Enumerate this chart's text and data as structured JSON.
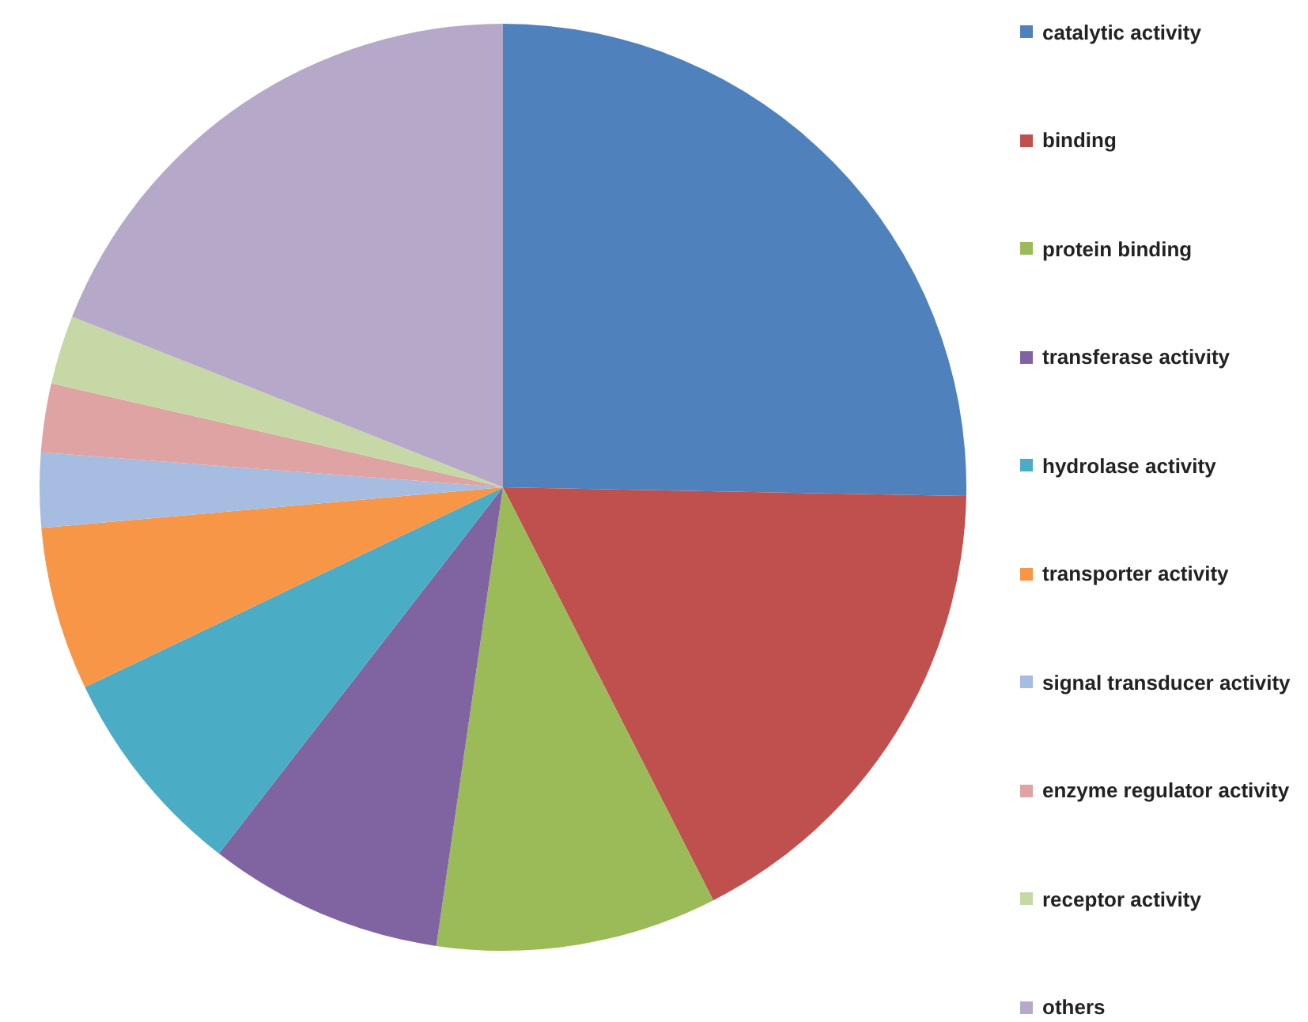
{
  "chart_data": {
    "type": "pie",
    "categories": [
      "catalytic activity",
      "binding",
      "protein binding",
      "transferase activity",
      "hydrolase activity",
      "transporter activity",
      "signal transducer activity",
      "enzyme regulator activity",
      "receptor activity",
      "others"
    ],
    "values": [
      25.3,
      17.2,
      9.8,
      8.2,
      7.4,
      5.7,
      2.6,
      2.4,
      2.4,
      19.0
    ],
    "colors": [
      "#4f81bd",
      "#c0504d",
      "#9bbb59",
      "#8064a2",
      "#4bacc6",
      "#f79646",
      "#a6bce0",
      "#dea3a2",
      "#c6d8a6",
      "#b6a8c8"
    ],
    "legend": "right"
  }
}
